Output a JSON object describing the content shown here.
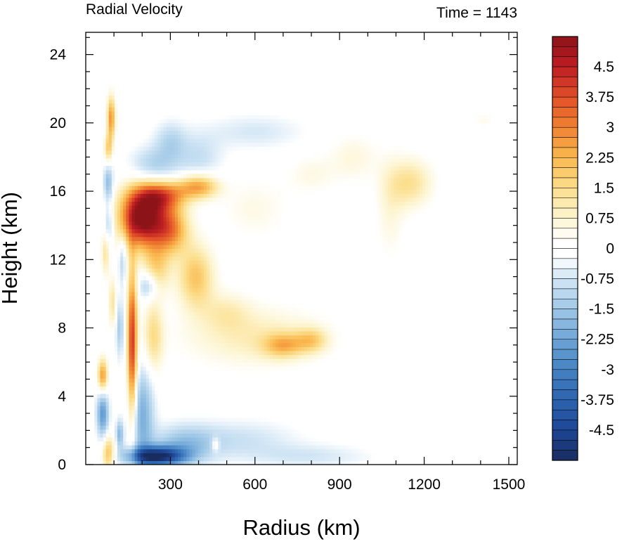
{
  "chart_data": {
    "type": "heatmap",
    "title": "Radial Velocity",
    "title_right": "Time = 1143",
    "xlabel": "Radius (km)",
    "ylabel": "Height (km)",
    "xlim": [
      0,
      1530
    ],
    "ylim": [
      0,
      25.3
    ],
    "x_ticks": [
      300,
      600,
      900,
      1200,
      1500
    ],
    "x_tick_labels": [
      "300",
      "600",
      "900",
      "1200",
      "1500"
    ],
    "y_ticks": [
      0,
      4,
      8,
      12,
      16,
      20,
      24
    ],
    "y_tick_labels": [
      "0",
      "4",
      "8",
      "12",
      "16",
      "20",
      "24"
    ],
    "colorbar": {
      "min": -5.25,
      "max": 5.25,
      "step": 0.25,
      "labels": [
        {
          "value": 4.5,
          "text": "4.5"
        },
        {
          "value": 3.75,
          "text": "3.75"
        },
        {
          "value": 3,
          "text": "3"
        },
        {
          "value": 2.25,
          "text": "2.25"
        },
        {
          "value": 1.5,
          "text": "1.5"
        },
        {
          "value": 0.75,
          "text": "0.75"
        },
        {
          "value": 0,
          "text": "0"
        },
        {
          "value": -0.75,
          "text": "-0.75"
        },
        {
          "value": -1.5,
          "text": "-1.5"
        },
        {
          "value": -2.25,
          "text": "-2.25"
        },
        {
          "value": -3,
          "text": "-3"
        },
        {
          "value": -3.75,
          "text": "-3.75"
        },
        {
          "value": -4.5,
          "text": "-4.5"
        }
      ]
    },
    "features": [
      {
        "r": 200,
        "z": 14.5,
        "v": 5.5,
        "sr": 55,
        "sz": 1.2
      },
      {
        "r": 165,
        "z": 7.0,
        "v": 4.2,
        "sr": 12,
        "sz": 3.2
      },
      {
        "r": 270,
        "z": 15.8,
        "v": 3.0,
        "sr": 60,
        "sz": 0.6
      },
      {
        "r": 400,
        "z": 16.3,
        "v": 2.6,
        "sr": 50,
        "sz": 0.5
      },
      {
        "r": 300,
        "z": 13.8,
        "v": 2.8,
        "sr": 45,
        "sz": 1.0
      },
      {
        "r": 390,
        "z": 11.0,
        "v": 2.0,
        "sr": 45,
        "sz": 1.3
      },
      {
        "r": 250,
        "z": 11.5,
        "v": 1.6,
        "sr": 35,
        "sz": 1.0
      },
      {
        "r": 240,
        "z": 7.5,
        "v": 1.5,
        "sr": 25,
        "sz": 1.5
      },
      {
        "r": 600,
        "z": 7.5,
        "v": 1.0,
        "sr": 170,
        "sz": 1.2
      },
      {
        "r": 700,
        "z": 7.0,
        "v": 1.8,
        "sr": 50,
        "sz": 0.5
      },
      {
        "r": 800,
        "z": 7.3,
        "v": 1.5,
        "sr": 40,
        "sz": 0.5
      },
      {
        "r": 500,
        "z": 9.0,
        "v": 0.8,
        "sr": 60,
        "sz": 0.8
      },
      {
        "r": 1150,
        "z": 16.5,
        "v": 1.4,
        "sr": 55,
        "sz": 1.0
      },
      {
        "r": 1080,
        "z": 15.0,
        "v": 0.6,
        "sr": 35,
        "sz": 2.0
      },
      {
        "r": 950,
        "z": 18.0,
        "v": 0.6,
        "sr": 60,
        "sz": 1.0
      },
      {
        "r": 800,
        "z": 17.0,
        "v": 0.5,
        "sr": 60,
        "sz": 0.8
      },
      {
        "r": 600,
        "z": 15.0,
        "v": 0.5,
        "sr": 80,
        "sz": 1.2
      },
      {
        "r": 1410,
        "z": 20.2,
        "v": 0.4,
        "sr": 30,
        "sz": 0.3
      },
      {
        "r": 90,
        "z": 20.3,
        "v": 2.8,
        "sr": 10,
        "sz": 0.9
      },
      {
        "r": 80,
        "z": 18.5,
        "v": 1.8,
        "sr": 10,
        "sz": 0.6
      },
      {
        "r": 70,
        "z": 12.5,
        "v": 1.3,
        "sr": 10,
        "sz": 1.0
      },
      {
        "r": 95,
        "z": 9.5,
        "v": 1.3,
        "sr": 10,
        "sz": 1.0
      },
      {
        "r": 60,
        "z": 5.2,
        "v": 2.8,
        "sr": 12,
        "sz": 0.7
      },
      {
        "r": 80,
        "z": 0.7,
        "v": 2.2,
        "sr": 15,
        "sz": 0.7
      },
      {
        "r": 460,
        "z": 1.2,
        "v": 1.2,
        "sr": 10,
        "sz": 0.3
      },
      {
        "r": 250,
        "z": 0.5,
        "v": -5.0,
        "sr": 70,
        "sz": 0.4
      },
      {
        "r": 200,
        "z": 3.0,
        "v": -2.0,
        "sr": 30,
        "sz": 2.0
      },
      {
        "r": 350,
        "z": 1.2,
        "v": -1.5,
        "sr": 80,
        "sz": 0.8
      },
      {
        "r": 550,
        "z": 1.5,
        "v": -0.8,
        "sr": 140,
        "sz": 0.8
      },
      {
        "r": 800,
        "z": 0.5,
        "v": -0.7,
        "sr": 150,
        "sz": 0.5
      },
      {
        "r": 220,
        "z": 10.5,
        "v": -1.6,
        "sr": 25,
        "sz": 0.6
      },
      {
        "r": 240,
        "z": 17.5,
        "v": -1.3,
        "sr": 60,
        "sz": 0.8
      },
      {
        "r": 300,
        "z": 19.0,
        "v": -1.0,
        "sr": 40,
        "sz": 0.8
      },
      {
        "r": 400,
        "z": 18.0,
        "v": -0.9,
        "sr": 60,
        "sz": 1.0
      },
      {
        "r": 600,
        "z": 19.5,
        "v": -0.7,
        "sr": 120,
        "sz": 0.7
      },
      {
        "r": 80,
        "z": 16.5,
        "v": -1.8,
        "sr": 12,
        "sz": 0.8
      },
      {
        "r": 80,
        "z": 14.0,
        "v": -1.5,
        "sr": 12,
        "sz": 0.8
      },
      {
        "r": 60,
        "z": 3.0,
        "v": -2.5,
        "sr": 15,
        "sz": 1.0
      },
      {
        "r": 120,
        "z": 8.0,
        "v": -1.4,
        "sr": 10,
        "sz": 1.2
      },
      {
        "r": 120,
        "z": 1.8,
        "v": -1.8,
        "sr": 10,
        "sz": 0.6
      },
      {
        "r": 130,
        "z": 12.0,
        "v": -1.2,
        "sr": 10,
        "sz": 1.0
      }
    ]
  }
}
